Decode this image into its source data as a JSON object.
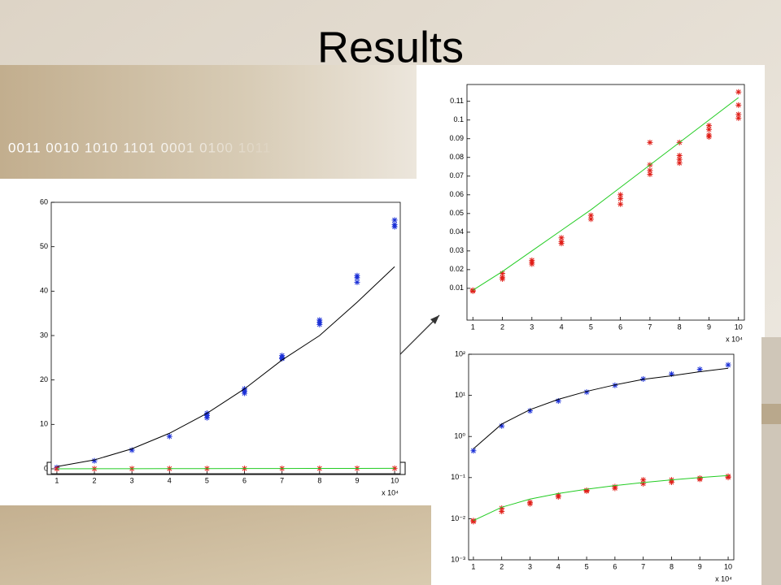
{
  "slide": {
    "title": "Results",
    "banner": "0011 0010 1010 1101 0001 0100 1011"
  },
  "chart_data": [
    {
      "type": "scatter",
      "xlabel": "x 10⁴",
      "xlim": [
        0.85,
        10.15
      ],
      "ylim": [
        -1.1,
        60
      ],
      "xticks": [
        1,
        2,
        3,
        4,
        5,
        6,
        7,
        8,
        9,
        10
      ],
      "yticks": [
        0,
        10,
        20,
        30,
        40,
        50,
        60
      ],
      "series": [
        {
          "kind": "points",
          "color": "#1a2fd6",
          "x": [
            1,
            2,
            3,
            4,
            5,
            5,
            5,
            6,
            6,
            6,
            7,
            7,
            7,
            8,
            8,
            8,
            9,
            9,
            9,
            10,
            10,
            10
          ],
          "values": [
            0.3,
            1.8,
            4.2,
            7.3,
            12,
            11.5,
            12.5,
            17.5,
            17,
            18,
            25,
            25.5,
            24.8,
            33,
            33.5,
            32.5,
            43,
            42,
            43.5,
            55,
            54.5,
            56
          ]
        },
        {
          "kind": "line",
          "color": "#000000",
          "x": [
            1,
            2,
            3,
            4,
            5,
            6,
            7,
            8,
            9,
            10
          ],
          "values": [
            0.5,
            2,
            4.5,
            8,
            12.5,
            18,
            24.5,
            30,
            37.5,
            45.5
          ]
        },
        {
          "kind": "points",
          "color": "#e0201a",
          "x": [
            1,
            2,
            3,
            4,
            5,
            6,
            7,
            8,
            9,
            10
          ],
          "values": [
            0.009,
            0.016,
            0.024,
            0.035,
            0.048,
            0.058,
            0.075,
            0.08,
            0.094,
            0.104
          ]
        },
        {
          "kind": "line",
          "color": "#22cc22",
          "x": [
            1,
            2,
            3,
            4,
            5,
            6,
            7,
            8,
            9,
            10
          ],
          "values": [
            0.009,
            0.019,
            0.03,
            0.041,
            0.052,
            0.064,
            0.076,
            0.088,
            0.1,
            0.112
          ]
        }
      ]
    },
    {
      "type": "scatter",
      "xlabel": "x 10⁴",
      "xlim": [
        0.8,
        10.2
      ],
      "ylim": [
        -0.007,
        0.119
      ],
      "xticks": [
        1,
        2,
        3,
        4,
        5,
        6,
        7,
        8,
        9,
        10
      ],
      "yticks": [
        0.01,
        0.02,
        0.03,
        0.04,
        0.05,
        0.06,
        0.07,
        0.08,
        0.09,
        0.1,
        0.11
      ],
      "series": [
        {
          "kind": "points",
          "color": "#e0201a",
          "x": [
            1,
            1,
            2,
            2,
            2,
            3,
            3,
            3,
            4,
            4,
            4,
            5,
            5,
            6,
            6,
            6,
            7,
            7,
            7,
            7,
            8,
            8,
            8,
            8,
            9,
            9,
            9,
            9,
            10,
            10,
            10,
            10
          ],
          "values": [
            0.009,
            0.0085,
            0.018,
            0.016,
            0.015,
            0.025,
            0.024,
            0.023,
            0.037,
            0.035,
            0.034,
            0.049,
            0.047,
            0.06,
            0.058,
            0.055,
            0.088,
            0.076,
            0.073,
            0.071,
            0.088,
            0.081,
            0.079,
            0.077,
            0.097,
            0.095,
            0.092,
            0.091,
            0.115,
            0.108,
            0.103,
            0.101
          ]
        },
        {
          "kind": "line",
          "color": "#22cc22",
          "x": [
            1,
            2,
            3,
            4,
            5,
            6,
            7,
            8,
            9,
            10
          ],
          "values": [
            0.009,
            0.019,
            0.03,
            0.041,
            0.052,
            0.064,
            0.076,
            0.088,
            0.1,
            0.112
          ]
        }
      ]
    },
    {
      "type": "scatter",
      "xlabel": "x 10⁴",
      "ylog": true,
      "xlim": [
        0.83,
        10.2
      ],
      "ylim": [
        0.001,
        100
      ],
      "xticks": [
        1,
        2,
        3,
        4,
        5,
        6,
        7,
        8,
        9,
        10
      ],
      "yticks": [
        {
          "value": 0.001,
          "label": "10⁻³"
        },
        {
          "value": 0.01,
          "label": "10⁻²"
        },
        {
          "value": 0.1,
          "label": "10⁻¹"
        },
        {
          "value": 1,
          "label": "10⁰"
        },
        {
          "value": 10,
          "label": "10¹"
        },
        {
          "value": 100,
          "label": "10²"
        }
      ],
      "series": [
        {
          "kind": "points",
          "color": "#1a2fd6",
          "x": [
            1,
            2,
            3,
            4,
            5,
            6,
            7,
            8,
            9,
            10
          ],
          "values": [
            0.45,
            1.8,
            4.2,
            7.3,
            12,
            17.5,
            25,
            33,
            43,
            55
          ]
        },
        {
          "kind": "line",
          "color": "#000000",
          "x": [
            1,
            2,
            3,
            4,
            5,
            6,
            7,
            8,
            9,
            10
          ],
          "values": [
            0.5,
            2,
            4.5,
            8,
            12.5,
            18,
            24.5,
            30,
            37.5,
            45.5
          ]
        },
        {
          "kind": "points",
          "color": "#e0201a",
          "x": [
            1,
            1,
            2,
            2,
            3,
            3,
            4,
            4,
            5,
            5,
            6,
            6,
            7,
            7,
            8,
            8,
            9,
            9,
            10,
            10
          ],
          "values": [
            0.009,
            0.0085,
            0.018,
            0.015,
            0.025,
            0.023,
            0.037,
            0.034,
            0.049,
            0.047,
            0.06,
            0.055,
            0.088,
            0.071,
            0.088,
            0.077,
            0.097,
            0.091,
            0.108,
            0.101
          ]
        },
        {
          "kind": "line",
          "color": "#22cc22",
          "x": [
            1,
            2,
            3,
            4,
            5,
            6,
            7,
            8,
            9,
            10
          ],
          "values": [
            0.009,
            0.019,
            0.03,
            0.041,
            0.052,
            0.064,
            0.076,
            0.088,
            0.1,
            0.112
          ]
        }
      ]
    }
  ]
}
